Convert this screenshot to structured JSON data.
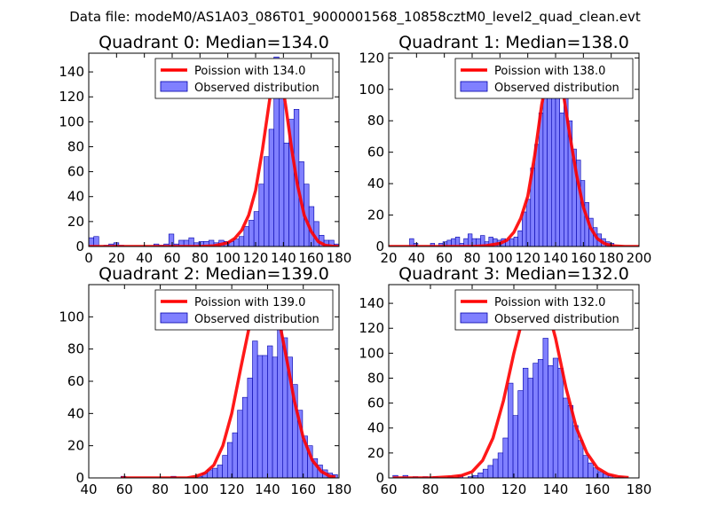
{
  "figure": {
    "suptitle": "Data file: modeM0/AS1A03_086T01_9000001568_10858cztM0_level2_quad_clean.evt",
    "colors": {
      "bar_fill": "#8080ff",
      "bar_edge": "#0000aa",
      "curve": "#ff0000",
      "axes": "#000000"
    }
  },
  "chart_data": [
    {
      "type": "bar",
      "title": "Quadrant 0: Median=134.0",
      "xlim": [
        0,
        180
      ],
      "ylim": [
        0,
        155
      ],
      "xticks": [
        0,
        20,
        40,
        60,
        80,
        100,
        120,
        140,
        160,
        180
      ],
      "yticks": [
        0,
        20,
        40,
        60,
        80,
        100,
        120,
        140
      ],
      "legend": {
        "curve": "Poission with 134.0",
        "bars": "Observed distribution",
        "position": "top-right"
      },
      "bin_width": 3.6,
      "bins": [
        [
          0,
          7
        ],
        [
          3.6,
          8
        ],
        [
          10.8,
          1
        ],
        [
          14.4,
          2
        ],
        [
          18,
          3
        ],
        [
          21.6,
          1
        ],
        [
          46.8,
          2
        ],
        [
          50.4,
          1
        ],
        [
          54,
          2
        ],
        [
          57.6,
          10
        ],
        [
          61.2,
          2
        ],
        [
          64.8,
          5
        ],
        [
          68.4,
          5
        ],
        [
          72,
          7
        ],
        [
          75.6,
          3
        ],
        [
          79.2,
          4
        ],
        [
          82.8,
          4
        ],
        [
          86.4,
          5
        ],
        [
          90,
          3
        ],
        [
          93.6,
          5
        ],
        [
          97.2,
          4
        ],
        [
          100.8,
          4
        ],
        [
          104.4,
          6
        ],
        [
          108,
          8
        ],
        [
          111.6,
          16
        ],
        [
          115.2,
          21
        ],
        [
          118.8,
          28
        ],
        [
          122.4,
          50
        ],
        [
          126,
          72
        ],
        [
          129.6,
          94
        ],
        [
          133.2,
          152
        ],
        [
          136.8,
          130
        ],
        [
          140.4,
          83
        ],
        [
          144,
          102
        ],
        [
          147.6,
          110
        ],
        [
          151.2,
          68
        ],
        [
          154.8,
          50
        ],
        [
          158.4,
          32
        ],
        [
          162,
          20
        ],
        [
          165.6,
          9
        ],
        [
          169.2,
          5
        ],
        [
          172.8,
          5
        ],
        [
          176.4,
          2
        ]
      ],
      "curve": {
        "x": [
          0,
          20,
          40,
          60,
          80,
          90,
          100,
          105,
          110,
          115,
          120,
          125,
          130,
          134,
          138,
          142,
          146,
          150,
          155,
          160,
          165,
          170,
          175,
          180
        ],
        "y": [
          0,
          0,
          0,
          0,
          0,
          0.6,
          3,
          6.5,
          13,
          25,
          45,
          78,
          117,
          148,
          140,
          110,
          78,
          50,
          25,
          12,
          4,
          1,
          0.3,
          0
        ]
      }
    },
    {
      "type": "bar",
      "title": "Quadrant 1: Median=138.0",
      "xlim": [
        20,
        200
      ],
      "ylim": [
        0,
        123
      ],
      "xticks": [
        20,
        40,
        60,
        80,
        100,
        120,
        140,
        160,
        180,
        200
      ],
      "yticks": [
        0,
        20,
        40,
        60,
        80,
        100,
        120
      ],
      "legend": {
        "curve": "Poission with 138.0",
        "bars": "Observed distribution",
        "position": "top-right"
      },
      "bin_width": 3.0,
      "bins": [
        [
          35,
          5
        ],
        [
          38,
          2
        ],
        [
          50,
          2
        ],
        [
          56,
          2
        ],
        [
          59,
          3
        ],
        [
          62,
          4
        ],
        [
          65,
          5
        ],
        [
          68,
          6
        ],
        [
          71,
          2
        ],
        [
          74,
          5
        ],
        [
          77,
          8
        ],
        [
          80,
          5
        ],
        [
          83,
          5
        ],
        [
          86,
          7
        ],
        [
          89,
          3
        ],
        [
          92,
          6
        ],
        [
          95,
          5
        ],
        [
          98,
          4
        ],
        [
          101,
          5
        ],
        [
          104,
          4
        ],
        [
          107,
          5
        ],
        [
          110,
          6
        ],
        [
          113,
          10
        ],
        [
          116,
          22
        ],
        [
          119,
          30
        ],
        [
          122,
          50
        ],
        [
          125,
          65
        ],
        [
          128,
          85
        ],
        [
          131,
          95
        ],
        [
          134,
          102
        ],
        [
          137,
          110
        ],
        [
          140,
          112
        ],
        [
          143,
          85
        ],
        [
          146,
          96
        ],
        [
          149,
          80
        ],
        [
          152,
          62
        ],
        [
          155,
          55
        ],
        [
          158,
          42
        ],
        [
          161,
          28
        ],
        [
          164,
          18
        ],
        [
          167,
          12
        ],
        [
          170,
          8
        ],
        [
          173,
          5
        ],
        [
          176,
          3
        ],
        [
          179,
          2
        ]
      ],
      "curve": {
        "x": [
          20,
          60,
          80,
          90,
          100,
          105,
          110,
          115,
          120,
          125,
          130,
          135,
          138,
          142,
          146,
          150,
          155,
          160,
          165,
          170,
          175,
          180,
          190,
          200
        ],
        "y": [
          0,
          0,
          0,
          0.5,
          2,
          4,
          9,
          18,
          32,
          58,
          90,
          113,
          117,
          112,
          95,
          72,
          46,
          25,
          12,
          5,
          2,
          0.5,
          0,
          0
        ]
      }
    },
    {
      "type": "bar",
      "title": "Quadrant 2: Median=139.0",
      "xlim": [
        40,
        180
      ],
      "ylim": [
        0,
        120
      ],
      "xticks": [
        40,
        60,
        80,
        100,
        120,
        140,
        160,
        180
      ],
      "yticks": [
        0,
        20,
        40,
        60,
        80,
        100
      ],
      "legend": {
        "curve": "Poission with 139.0",
        "bars": "Observed distribution",
        "position": "top-right"
      },
      "bin_width": 2.8,
      "bins": [
        [
          58,
          1
        ],
        [
          86,
          1
        ],
        [
          100.8,
          1
        ],
        [
          103.6,
          3
        ],
        [
          106.4,
          5
        ],
        [
          109.2,
          6
        ],
        [
          112,
          8
        ],
        [
          114.8,
          14
        ],
        [
          117.6,
          22
        ],
        [
          120.4,
          28
        ],
        [
          123.2,
          42
        ],
        [
          126,
          50
        ],
        [
          128.8,
          62
        ],
        [
          131.6,
          85
        ],
        [
          134.4,
          76
        ],
        [
          137.2,
          76
        ],
        [
          140,
          82
        ],
        [
          142.8,
          75
        ],
        [
          145.6,
          110
        ],
        [
          148.4,
          87
        ],
        [
          151.2,
          75
        ],
        [
          154,
          58
        ],
        [
          156.8,
          42
        ],
        [
          159.6,
          26
        ],
        [
          162.4,
          20
        ],
        [
          165.2,
          12
        ],
        [
          168,
          8
        ],
        [
          170.8,
          5
        ],
        [
          173.6,
          3
        ],
        [
          176.4,
          2
        ]
      ],
      "curve": {
        "x": [
          58,
          80,
          95,
          100,
          105,
          110,
          115,
          120,
          125,
          130,
          135,
          139,
          143,
          147,
          151,
          155,
          160,
          165,
          170,
          175,
          178
        ],
        "y": [
          0,
          0,
          0,
          1,
          3,
          8,
          20,
          40,
          68,
          95,
          112,
          115,
          110,
          95,
          72,
          48,
          25,
          11,
          4,
          1,
          0.5
        ]
      }
    },
    {
      "type": "bar",
      "title": "Quadrant 3: Median=132.0",
      "xlim": [
        60,
        180
      ],
      "ylim": [
        0,
        155
      ],
      "xticks": [
        60,
        80,
        100,
        120,
        140,
        160,
        180
      ],
      "yticks": [
        0,
        20,
        40,
        60,
        80,
        100,
        120,
        140
      ],
      "legend": {
        "curve": "Poission with 132.0",
        "bars": "Observed distribution",
        "position": "top-right"
      },
      "bin_width": 2.4,
      "bins": [
        [
          62,
          2
        ],
        [
          66.8,
          2
        ],
        [
          71.6,
          1
        ],
        [
          76.4,
          1
        ],
        [
          81.2,
          1
        ],
        [
          88.4,
          1
        ],
        [
          93.2,
          2
        ],
        [
          98,
          1
        ],
        [
          100.4,
          2
        ],
        [
          102.8,
          4
        ],
        [
          105.2,
          7
        ],
        [
          107.6,
          10
        ],
        [
          110,
          15
        ],
        [
          112.4,
          20
        ],
        [
          114.8,
          32
        ],
        [
          117.2,
          76
        ],
        [
          119.6,
          50
        ],
        [
          122,
          70
        ],
        [
          124.4,
          88
        ],
        [
          126.8,
          80
        ],
        [
          129.2,
          92
        ],
        [
          131.6,
          95
        ],
        [
          134,
          112
        ],
        [
          136.4,
          90
        ],
        [
          138.8,
          96
        ],
        [
          141.2,
          88
        ],
        [
          143.6,
          64
        ],
        [
          146,
          58
        ],
        [
          148.4,
          42
        ],
        [
          150.8,
          30
        ],
        [
          153.2,
          18
        ],
        [
          155.6,
          12
        ],
        [
          158,
          8
        ],
        [
          160.4,
          5
        ],
        [
          162.8,
          3
        ],
        [
          165.2,
          2
        ],
        [
          170,
          1
        ]
      ],
      "curve": {
        "x": [
          62,
          80,
          90,
          95,
          100,
          105,
          110,
          115,
          120,
          125,
          128,
          132,
          136,
          140,
          145,
          150,
          155,
          160,
          165,
          170,
          175
        ],
        "y": [
          0,
          0,
          1,
          2,
          5,
          14,
          32,
          62,
          100,
          133,
          145,
          148,
          137,
          112,
          72,
          40,
          20,
          8,
          3,
          1,
          0.3
        ]
      }
    }
  ]
}
